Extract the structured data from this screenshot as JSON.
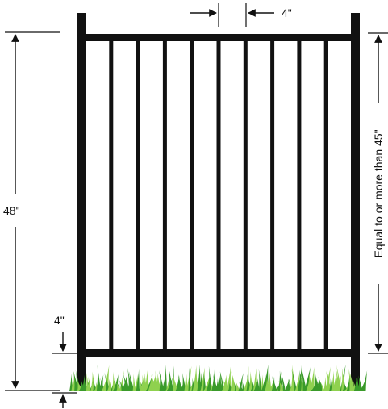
{
  "diagram": {
    "labels": {
      "picket_spacing": "4\"",
      "fence_height": "48\"",
      "bottom_clearance": "4\"",
      "gate_height_requirement": "Equal to or more than 45\""
    },
    "colors": {
      "fence": "#111111",
      "dimension_lines": "#111111",
      "grass_light": "#8fd14f",
      "grass_dark": "#3a9a2a",
      "background": "#ffffff"
    },
    "counts": {
      "inner_pickets": 9
    }
  }
}
